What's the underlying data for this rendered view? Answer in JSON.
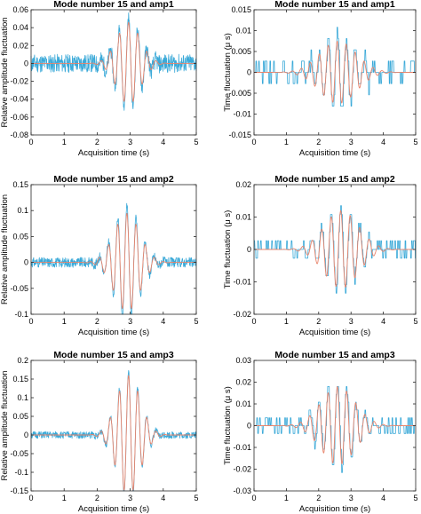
{
  "chart_data": [
    {
      "type": "line",
      "title": "Mode number 15 and amp1",
      "xlabel": "Acquisition time (s)",
      "ylabel": "Relative amplitude fluctuation",
      "xlim": [
        0,
        5
      ],
      "ylim": [
        -0.08,
        0.06
      ],
      "xticks": [
        "0",
        "1",
        "2",
        "3",
        "4",
        "5"
      ],
      "yticks": [
        "-0.08",
        "-0.06",
        "-0.04",
        "-0.02",
        "0",
        "0.02",
        "0.04",
        "0.06"
      ],
      "grid": false,
      "packet": {
        "center": 2.95,
        "width": 0.5,
        "freq": 3.6,
        "phase": 0.0
      },
      "series": [
        {
          "color": "#3aa9d8",
          "kind": "measured",
          "amplitude": 0.052,
          "noise": 0.013,
          "quantized": false,
          "seed": 11
        },
        {
          "color": "#e8846c",
          "kind": "model",
          "amplitude": 0.046,
          "noise": 0.0,
          "quantized": false,
          "seed": 12
        }
      ]
    },
    {
      "type": "line",
      "title": "Mode number 15 and amp1",
      "xlabel": "Acquisition time (s)",
      "ylabel": "Time fluctuation (μ s)",
      "xlim": [
        0,
        5
      ],
      "ylim": [
        -0.015,
        0.015
      ],
      "xticks": [
        "0",
        "1",
        "2",
        "3",
        "4",
        "5"
      ],
      "yticks": [
        "-0.015",
        "-0.01",
        "-0.005",
        "0",
        "0.005",
        "0.01",
        "0.015"
      ],
      "grid": false,
      "packet": {
        "center": 2.6,
        "width": 0.8,
        "freq": 3.6,
        "phase": 0.6
      },
      "series": [
        {
          "color": "#3aa9d8",
          "kind": "measured",
          "amplitude": 0.009,
          "noise": 0.003,
          "quantized": true,
          "seed": 21
        },
        {
          "color": "#e8846c",
          "kind": "model",
          "amplitude": 0.0075,
          "noise": 0.0,
          "quantized": false,
          "seed": 22
        }
      ]
    },
    {
      "type": "line",
      "title": "Mode number 15 and amp2",
      "xlabel": "Acquisition time (s)",
      "ylabel": "Relative amplitude fluctuation",
      "xlim": [
        0,
        5
      ],
      "ylim": [
        -0.1,
        0.15
      ],
      "xticks": [
        "0",
        "1",
        "2",
        "3",
        "4",
        "5"
      ],
      "yticks": [
        "-0.1",
        "-0.05",
        "0",
        "0.05",
        "0.1",
        "0.15"
      ],
      "grid": false,
      "packet": {
        "center": 2.9,
        "width": 0.55,
        "freq": 3.6,
        "phase": 0.0
      },
      "series": [
        {
          "color": "#3aa9d8",
          "kind": "measured",
          "amplitude": 0.11,
          "noise": 0.012,
          "quantized": false,
          "seed": 31
        },
        {
          "color": "#e8846c",
          "kind": "model",
          "amplitude": 0.095,
          "noise": 0.0,
          "quantized": false,
          "seed": 32
        }
      ]
    },
    {
      "type": "line",
      "title": "Mode number 15 and amp2",
      "xlabel": "Acquisition time (s)",
      "ylabel": "Time fluctuation (μ s)",
      "xlim": [
        0,
        5
      ],
      "ylim": [
        -0.02,
        0.02
      ],
      "xticks": [
        "0",
        "1",
        "2",
        "3",
        "4",
        "5"
      ],
      "yticks": [
        "-0.02",
        "-0.01",
        "0",
        "0.01",
        "0.02"
      ],
      "grid": false,
      "packet": {
        "center": 2.7,
        "width": 0.75,
        "freq": 3.4,
        "phase": 0.4
      },
      "series": [
        {
          "color": "#3aa9d8",
          "kind": "measured",
          "amplitude": 0.013,
          "noise": 0.003,
          "quantized": true,
          "seed": 41
        },
        {
          "color": "#e8846c",
          "kind": "model",
          "amplitude": 0.012,
          "noise": 0.0,
          "quantized": false,
          "seed": 42
        }
      ]
    },
    {
      "type": "line",
      "title": "Mode number 15 and amp3",
      "xlabel": "Acquisition time (s)",
      "ylabel": "Relative amplitude fluctuation",
      "xlim": [
        0,
        5
      ],
      "ylim": [
        -0.15,
        0.2
      ],
      "xticks": [
        "0",
        "1",
        "2",
        "3",
        "4",
        "5"
      ],
      "yticks": [
        "-0.15",
        "-0.1",
        "-0.05",
        "0",
        "0.05",
        "0.1",
        "0.15",
        "0.2"
      ],
      "grid": false,
      "packet": {
        "center": 2.95,
        "width": 0.5,
        "freq": 3.6,
        "phase": 0.0
      },
      "series": [
        {
          "color": "#3aa9d8",
          "kind": "measured",
          "amplitude": 0.17,
          "noise": 0.012,
          "quantized": false,
          "seed": 51
        },
        {
          "color": "#e8846c",
          "kind": "model",
          "amplitude": 0.16,
          "noise": 0.0,
          "quantized": false,
          "seed": 52
        }
      ]
    },
    {
      "type": "line",
      "title": "Mode number 15 and amp3",
      "xlabel": "Acquisition time (s)",
      "ylabel": "Time fluctuation (μ s)",
      "xlim": [
        0,
        5
      ],
      "ylim": [
        -0.03,
        0.03
      ],
      "xticks": [
        "0",
        "1",
        "2",
        "3",
        "4",
        "5"
      ],
      "yticks": [
        "-0.03",
        "-0.02",
        "-0.01",
        "0",
        "0.01",
        "0.02",
        "0.03"
      ],
      "grid": false,
      "packet": {
        "center": 2.6,
        "width": 0.75,
        "freq": 3.5,
        "phase": 0.5
      },
      "series": [
        {
          "color": "#3aa9d8",
          "kind": "measured",
          "amplitude": 0.02,
          "noise": 0.004,
          "quantized": true,
          "seed": 61
        },
        {
          "color": "#e8846c",
          "kind": "model",
          "amplitude": 0.018,
          "noise": 0.0,
          "quantized": false,
          "seed": 62
        }
      ]
    }
  ]
}
